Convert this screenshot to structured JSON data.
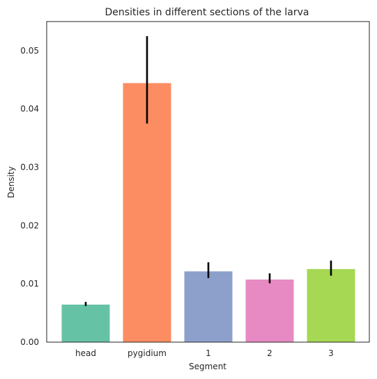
{
  "chart_data": {
    "type": "bar",
    "title": "Densities in different sections of the larva",
    "xlabel": "Segment",
    "ylabel": "Density",
    "categories": [
      "head",
      "pygidium",
      "1",
      "2",
      "3"
    ],
    "values": [
      0.0065,
      0.0445,
      0.0122,
      0.0108,
      0.0126
    ],
    "error_low": [
      0.0062,
      0.0375,
      0.011,
      0.0101,
      0.0114
    ],
    "error_high": [
      0.0069,
      0.0525,
      0.0137,
      0.0118,
      0.014
    ],
    "colors": [
      "#66c2a5",
      "#fc8d62",
      "#8da0cb",
      "#e78ac3",
      "#a6d854"
    ],
    "error_color": "#000000",
    "ylim": [
      0,
      0.055
    ],
    "yticks": [
      0.0,
      0.01,
      0.02,
      0.03,
      0.04,
      0.05
    ],
    "ytick_labels": [
      "0.00",
      "0.01",
      "0.02",
      "0.03",
      "0.04",
      "0.05"
    ],
    "grid": false,
    "legend": "none"
  }
}
